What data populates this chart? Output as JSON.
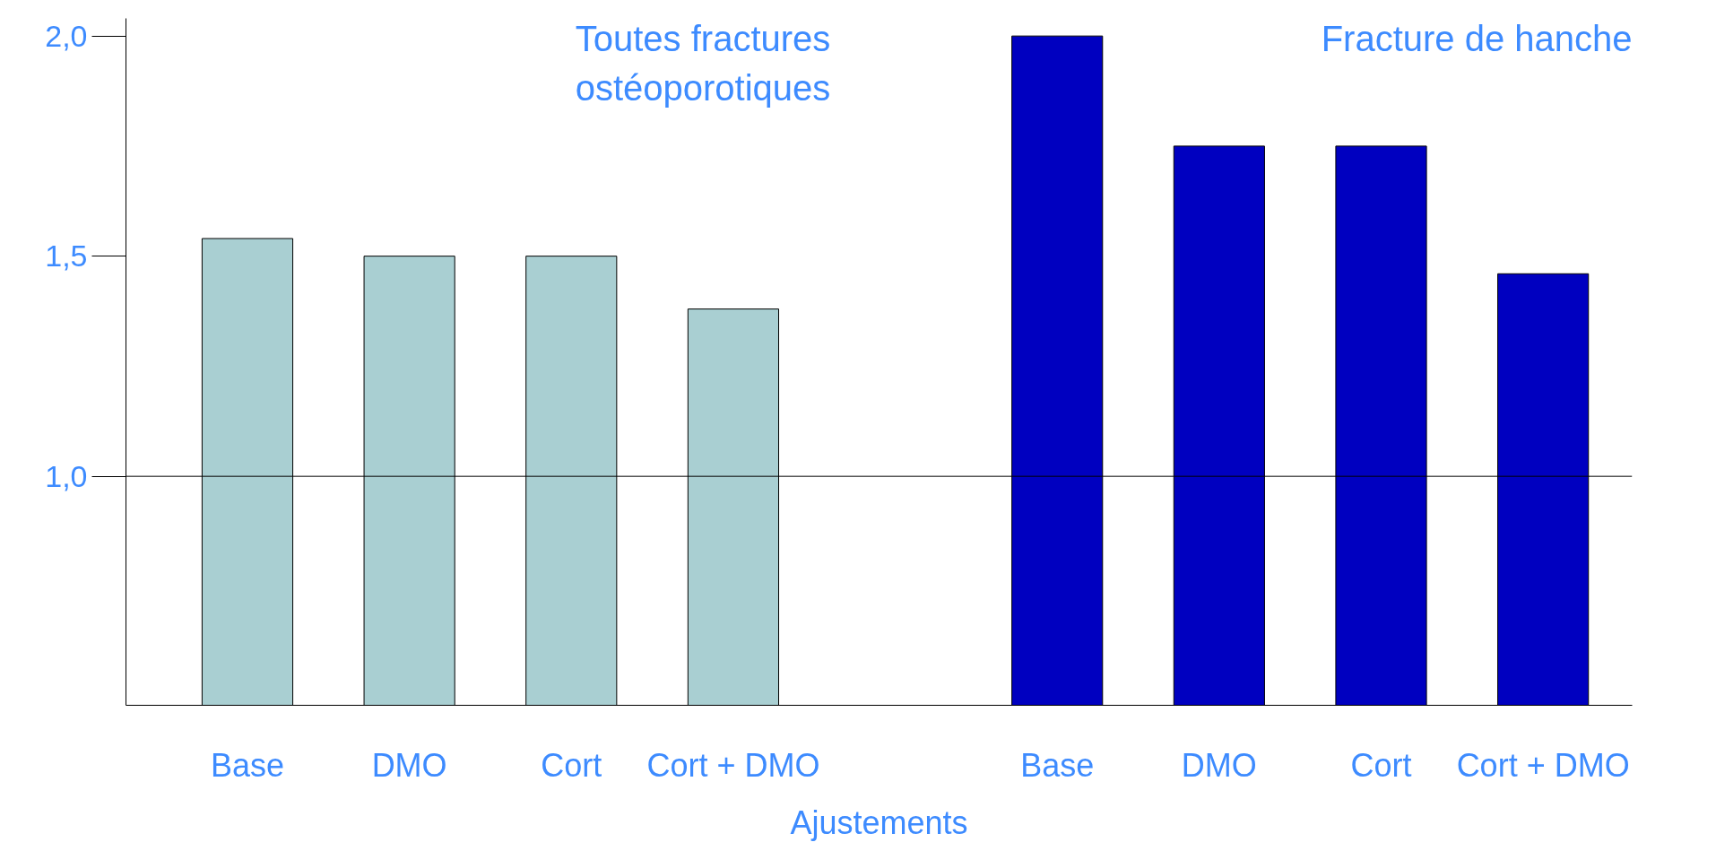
{
  "chart_data": {
    "type": "bar",
    "categories": [
      "Base",
      "DMO",
      "Cort",
      "Cort + DMO",
      null,
      "Base",
      "DMO",
      "Cort",
      "Cort + DMO"
    ],
    "values": [
      1.54,
      1.5,
      1.5,
      1.38,
      null,
      2.0,
      1.75,
      1.75,
      1.46
    ],
    "colors": [
      "#a9cfd2",
      "#a9cfd2",
      "#a9cfd2",
      "#a9cfd2",
      "#a9cfd2",
      "#0000c0",
      "#0000c0",
      "#0000c0",
      "#0000c0"
    ],
    "xlabel": "Ajustements",
    "ylim": [
      0.48,
      2.04
    ],
    "yticks": [
      {
        "value": 1.0,
        "label": "1,0"
      },
      {
        "value": 1.5,
        "label": "1,5"
      },
      {
        "value": 2.0,
        "label": "2,0"
      }
    ],
    "ref_lines": [
      {
        "axis": "y",
        "value": 1.0,
        "color": "#000000"
      }
    ],
    "annotations": [
      "Toutes fractures\nostéoporotiques",
      "Fracture de hanche"
    ],
    "grid": false
  }
}
